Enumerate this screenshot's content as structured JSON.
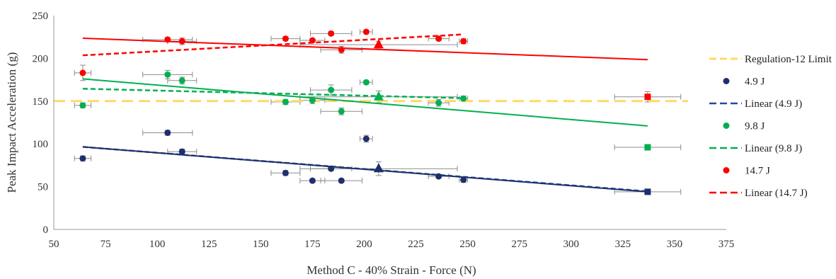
{
  "chart_data": {
    "type": "scatter",
    "title": "",
    "xlabel": "Method C - 40% Strain - Force (N)",
    "ylabel": "Peak Impact Acceleration (g)",
    "xlim": [
      50,
      375
    ],
    "ylim": [
      0,
      250
    ],
    "x_ticks": [
      50,
      75,
      100,
      125,
      150,
      175,
      200,
      225,
      250,
      275,
      300,
      325,
      350,
      375
    ],
    "y_ticks": [
      0,
      50,
      100,
      150,
      200,
      250
    ],
    "grid": false,
    "legend_position": "right",
    "regulation_limit": {
      "name": "Regulation-12 Limit",
      "value": 150,
      "color": "#FFD966"
    },
    "series": [
      {
        "name": "4.9 J",
        "color": "#1F2F6B",
        "points": [
          {
            "x": 64,
            "y": 83,
            "xerr": 4,
            "yerr": 3
          },
          {
            "x": 105,
            "y": 113,
            "xerr": 12,
            "yerr": 3
          },
          {
            "x": 112,
            "y": 91,
            "xerr": 7,
            "yerr": 3
          },
          {
            "x": 162,
            "y": 66,
            "xerr": 7,
            "yerr": 3
          },
          {
            "x": 175,
            "y": 57,
            "xerr": 6,
            "yerr": 2
          },
          {
            "x": 184,
            "y": 71,
            "xerr": 10,
            "yerr": 2
          },
          {
            "x": 189,
            "y": 57,
            "xerr": 10,
            "yerr": 2
          },
          {
            "x": 201,
            "y": 106,
            "xerr": 3,
            "yerr": 4
          },
          {
            "x": 236,
            "y": 62,
            "xerr": 5,
            "yerr": 2
          },
          {
            "x": 248,
            "y": 58,
            "xerr": 2,
            "yerr": 3
          }
        ],
        "triangle": {
          "x": 207,
          "y": 71,
          "xerr": 38,
          "yerr": 8
        },
        "square": {
          "x": 337,
          "y": 44,
          "xerr": 16,
          "yerr": 2
        },
        "trend": {
          "name": "Linear (4.9 J)",
          "x": [
            64,
            337
          ],
          "y": [
            96.5,
            44.5
          ]
        }
      },
      {
        "name": "9.8 J",
        "color": "#00B050",
        "points": [
          {
            "x": 64,
            "y": 145,
            "xerr": 4,
            "yerr": 3
          },
          {
            "x": 105,
            "y": 181,
            "xerr": 12,
            "yerr": 5
          },
          {
            "x": 112,
            "y": 174,
            "xerr": 7,
            "yerr": 4
          },
          {
            "x": 162,
            "y": 149,
            "xerr": 7,
            "yerr": 3
          },
          {
            "x": 175,
            "y": 151,
            "xerr": 6,
            "yerr": 4
          },
          {
            "x": 184,
            "y": 163,
            "xerr": 10,
            "yerr": 6
          },
          {
            "x": 189,
            "y": 138,
            "xerr": 10,
            "yerr": 4
          },
          {
            "x": 201,
            "y": 172,
            "xerr": 3,
            "yerr": 2
          },
          {
            "x": 236,
            "y": 148,
            "xerr": 5,
            "yerr": 4
          },
          {
            "x": 248,
            "y": 153,
            "xerr": 2,
            "yerr": 3
          }
        ],
        "triangle": {
          "x": 207,
          "y": 155,
          "xerr": 38,
          "yerr": 7
        },
        "square": {
          "x": 337,
          "y": 96,
          "xerr": 16,
          "yerr": 3
        },
        "trend": {
          "name": "Linear (9.8 J)",
          "x": [
            64,
            248
          ],
          "y": [
            164.5,
            153.5
          ]
        },
        "fit": {
          "x": [
            64,
            337
          ],
          "y": [
            176,
            121
          ]
        }
      },
      {
        "name": "14.7 J",
        "color": "#FF0000",
        "points": [
          {
            "x": 64,
            "y": 183,
            "xerr": 4,
            "yerr": 9
          },
          {
            "x": 105,
            "y": 222,
            "xerr": 12,
            "yerr": 2
          },
          {
            "x": 112,
            "y": 220,
            "xerr": 7,
            "yerr": 4
          },
          {
            "x": 162,
            "y": 223,
            "xerr": 7,
            "yerr": 2
          },
          {
            "x": 175,
            "y": 221,
            "xerr": 6,
            "yerr": 2
          },
          {
            "x": 184,
            "y": 229,
            "xerr": 10,
            "yerr": 2
          },
          {
            "x": 189,
            "y": 210,
            "xerr": 10,
            "yerr": 4
          },
          {
            "x": 201,
            "y": 231,
            "xerr": 3,
            "yerr": 2
          },
          {
            "x": 236,
            "y": 223,
            "xerr": 5,
            "yerr": 2
          },
          {
            "x": 248,
            "y": 220,
            "xerr": 2,
            "yerr": 3
          }
        ],
        "triangle": {
          "x": 207,
          "y": 216,
          "xerr": 38,
          "yerr": 4
        },
        "square": {
          "x": 337,
          "y": 155,
          "xerr": 16,
          "yerr": 6
        },
        "trend": {
          "name": "Linear (14.7 J)",
          "x": [
            64,
            248
          ],
          "y": [
            203.5,
            228
          ]
        },
        "fit": {
          "x": [
            64,
            337
          ],
          "y": [
            223.5,
            198.5
          ]
        }
      }
    ]
  }
}
